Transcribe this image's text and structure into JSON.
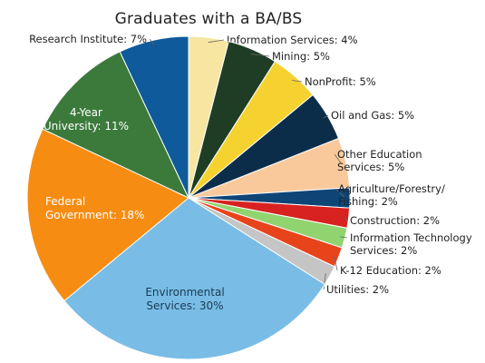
{
  "chart_data": {
    "type": "pie",
    "title": "Graduates with a BA/BS",
    "unit": "%",
    "slices": [
      {
        "label": "Information Services",
        "value": 4,
        "display": "Information Services: 4%",
        "color": "#f7e6a2"
      },
      {
        "label": "Mining",
        "value": 5,
        "display": "Mining: 5%",
        "color": "#1f3d24"
      },
      {
        "label": "NonProfit",
        "value": 5,
        "display": "NonProfit: 5%",
        "color": "#f5d230"
      },
      {
        "label": "Oil and Gas",
        "value": 5,
        "display": "Oil and Gas: 5%",
        "color": "#0c2d4a"
      },
      {
        "label": "Other Education Services",
        "value": 5,
        "display": [
          "Other Education",
          "Services: 5%"
        ],
        "color": "#f9c99c"
      },
      {
        "label": "Agriculture/Forestry/Fishing",
        "value": 2,
        "display": [
          "Agriculture/Forestry/",
          "Fishing: 2%"
        ],
        "color": "#0e4577"
      },
      {
        "label": "Construction",
        "value": 2,
        "display": "Construction: 2%",
        "color": "#d7221f"
      },
      {
        "label": "Information Technology Services",
        "value": 2,
        "display": [
          "Information Technology",
          "Services: 2%"
        ],
        "color": "#91d36e"
      },
      {
        "label": "K-12 Education",
        "value": 2,
        "display": "K-12 Education: 2%",
        "color": "#e8441c"
      },
      {
        "label": "Utilities",
        "value": 2,
        "display": "Utilities: 2%",
        "color": "#c5c5c5"
      },
      {
        "label": "Environmental Services",
        "value": 30,
        "display": [
          "Environmental",
          "Services: 30%"
        ],
        "color": "#79bde6"
      },
      {
        "label": "Federal Government",
        "value": 18,
        "display": [
          "Federal",
          "Government: 18%"
        ],
        "color": "#f78c12"
      },
      {
        "label": "4-Year University",
        "value": 11,
        "display": [
          "4-Year",
          "University: 11%"
        ],
        "color": "#3c7a3c"
      },
      {
        "label": "Research Institute",
        "value": 7,
        "display": "Research Institute: 7%",
        "color": "#0f5a9a"
      }
    ]
  }
}
